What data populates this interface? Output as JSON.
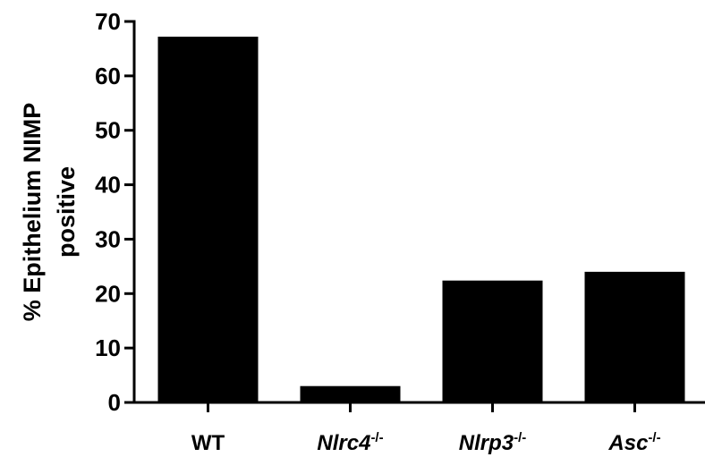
{
  "chart_data": {
    "type": "bar",
    "categories": [
      {
        "name": "WT",
        "italic": false,
        "superscript": ""
      },
      {
        "name": "Nlrc4",
        "italic": true,
        "superscript": "-/-"
      },
      {
        "name": "Nlrp3",
        "italic": true,
        "superscript": "-/-"
      },
      {
        "name": "Asc",
        "italic": true,
        "superscript": "-/-"
      }
    ],
    "values": [
      67.2,
      3.0,
      22.4,
      24.0
    ],
    "ylabel_lines": [
      "% Epithelium NIMP",
      "positive"
    ],
    "ylim": [
      0,
      70
    ],
    "yticks": [
      0,
      10,
      20,
      30,
      40,
      50,
      60,
      70
    ],
    "grid": false,
    "legend": "none",
    "bar_color": "#000000",
    "axis_color": "#000000"
  }
}
